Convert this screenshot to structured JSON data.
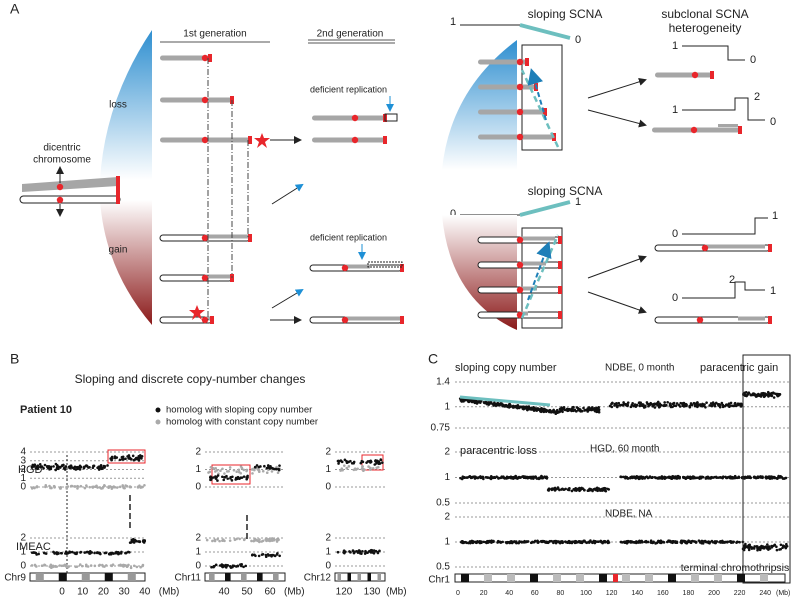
{
  "panel_a": {
    "label": "A",
    "first_generation": "1st generation",
    "second_generation": "2nd generation",
    "loss": "loss",
    "gain": "gain",
    "dicentric": [
      "dicentric",
      "chromosome"
    ],
    "deficient_replication_loss": "deficient replication",
    "deficient_replication_gain": "deficient replication",
    "sloping_loss": {
      "title": "sloping SCNA",
      "start": 1,
      "end": 0
    },
    "sloping_gain": {
      "title": "sloping SCNA",
      "start": 0,
      "end": 1
    },
    "heterogeneity_title": [
      "subclonal SCNA",
      "heterogeneity"
    ],
    "loss_profiles": [
      [
        1,
        0
      ],
      [
        1,
        2,
        0
      ]
    ],
    "gain_profiles": [
      [
        0,
        1
      ],
      [
        0,
        2,
        1
      ]
    ]
  },
  "panel_b": {
    "label": "B",
    "title": "Sloping and discrete copy-number changes",
    "patient": "Patient 10",
    "legend": [
      "homolog with sloping copy number",
      "homolog with constant copy number"
    ],
    "rows": [
      "HGD",
      "IMEAC"
    ],
    "plots": [
      {
        "chrom": "Chr9",
        "hgd_yticks": [
          4,
          3,
          2,
          1,
          0
        ],
        "imeac_yticks": [
          2,
          1,
          0
        ],
        "xticks": [
          0,
          10,
          20,
          30,
          40
        ]
      },
      {
        "chrom": "Chr11",
        "hgd_yticks": [
          2,
          1,
          0
        ],
        "imeac_yticks": [
          2,
          1,
          0
        ],
        "xticks": [
          40,
          50,
          60
        ]
      },
      {
        "chrom": "Chr12",
        "hgd_yticks": [
          2,
          1,
          0
        ],
        "imeac_yticks": [
          2,
          1,
          0
        ],
        "xticks": [
          120,
          130
        ]
      }
    ],
    "unit": "(Mb)"
  },
  "panel_c": {
    "label": "C",
    "sloping": "sloping copy number",
    "gain": "paracentric gain",
    "loss": "paracentric loss",
    "chromothripsis": "terminal chromothripsis",
    "samples": [
      {
        "name": "NDBE, 0 month",
        "yticks": [
          1.4,
          1,
          0.75
        ]
      },
      {
        "name": "HGD, 60 month",
        "yticks": [
          2,
          1,
          0.5
        ]
      },
      {
        "name": "NDBE, NA",
        "yticks": [
          2,
          1,
          0.5
        ]
      }
    ],
    "chrom": "Chr1",
    "xticks": [
      0,
      20,
      40,
      60,
      80,
      100,
      120,
      140,
      160,
      180,
      200,
      220,
      240
    ],
    "unit": "(Mb)"
  }
}
